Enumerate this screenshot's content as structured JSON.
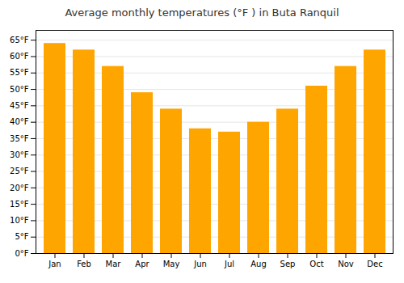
{
  "chart_data": {
    "type": "bar",
    "title": "Average monthly temperatures (°F ) in Buta Ranquil",
    "categories": [
      "Jan",
      "Feb",
      "Mar",
      "Apr",
      "May",
      "Jun",
      "Jul",
      "Aug",
      "Sep",
      "Oct",
      "Nov",
      "Dec"
    ],
    "values": [
      64,
      62,
      57,
      49,
      44,
      38,
      37,
      40,
      44,
      51,
      57,
      62
    ],
    "color": "#FFA500",
    "ylim": [
      0,
      68
    ],
    "yticks": [
      {
        "value": 0,
        "label": "0°F"
      },
      {
        "value": 5,
        "label": "5°F"
      },
      {
        "value": 10,
        "label": "10°F"
      },
      {
        "value": 15,
        "label": "15°F"
      },
      {
        "value": 20,
        "label": "20°F"
      },
      {
        "value": 25,
        "label": "25°F"
      },
      {
        "value": 30,
        "label": "30°F"
      },
      {
        "value": 35,
        "label": "35°F"
      },
      {
        "value": 40,
        "label": "40°F"
      },
      {
        "value": 45,
        "label": "45°F"
      },
      {
        "value": 50,
        "label": "50°F"
      },
      {
        "value": 55,
        "label": "55°F"
      },
      {
        "value": 60,
        "label": "60°F"
      },
      {
        "value": 65,
        "label": "65°F"
      }
    ],
    "grid": true
  }
}
